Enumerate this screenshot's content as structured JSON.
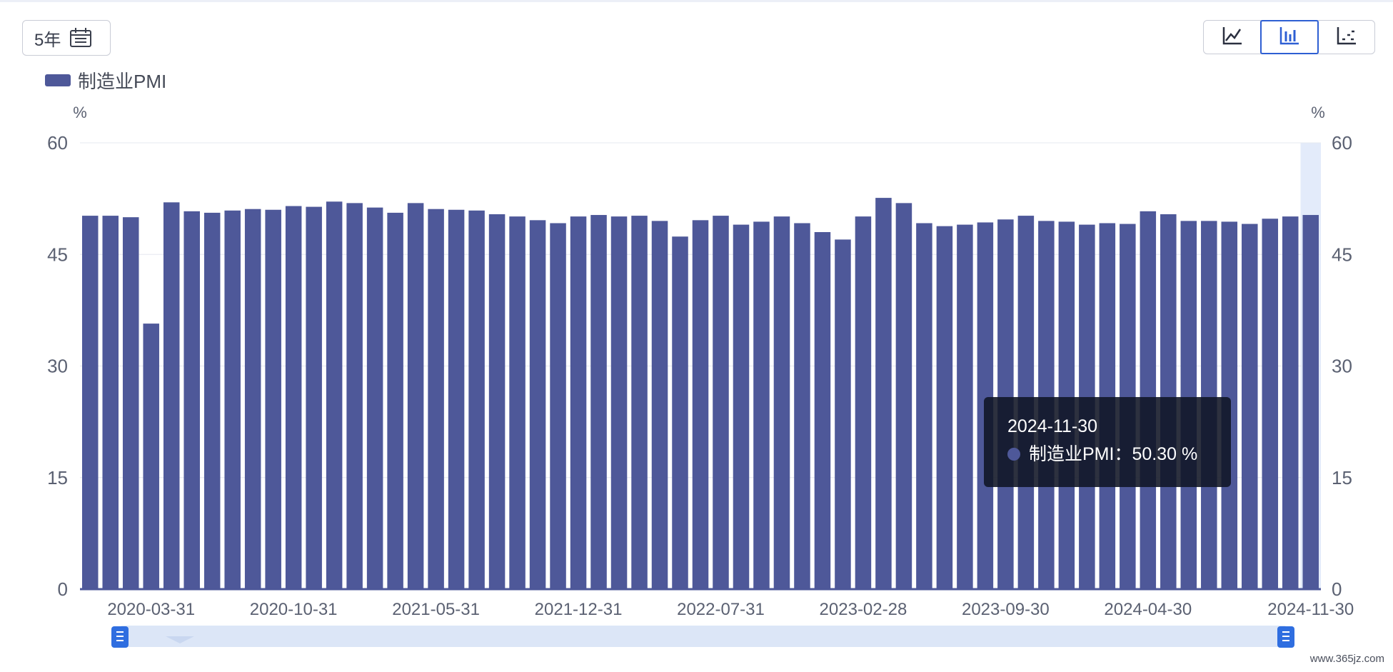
{
  "toolbar": {
    "period_label": "5年",
    "calendar_icon": "calendar-icon",
    "chart_type_buttons": [
      {
        "icon": "line-chart-icon",
        "active": false
      },
      {
        "icon": "bar-chart-icon",
        "active": true
      },
      {
        "icon": "scatter-chart-icon",
        "active": false
      }
    ]
  },
  "tooltip": {
    "date": "2024-11-30",
    "series_name": "制造业PMI",
    "separator": "：",
    "value": "50.30 %"
  },
  "watermark": "www.365jz.com",
  "colors": {
    "bar": "#4e5899",
    "highlight_band": "#e3ebfa",
    "slider_handle": "#2f6ee0",
    "slider_track": "#dce6f7"
  },
  "chart_data": {
    "type": "bar",
    "legend": [
      "制造业PMI"
    ],
    "series": [
      {
        "name": "制造业PMI",
        "values": [
          50.2,
          50.2,
          50.0,
          35.7,
          52.0,
          50.8,
          50.6,
          50.9,
          51.1,
          51.0,
          51.5,
          51.4,
          52.1,
          51.9,
          51.3,
          50.6,
          51.9,
          51.1,
          51.0,
          50.9,
          50.4,
          50.1,
          49.6,
          49.2,
          50.1,
          50.3,
          50.1,
          50.2,
          49.5,
          47.4,
          49.6,
          50.2,
          49.0,
          49.4,
          50.1,
          49.2,
          48.0,
          47.0,
          50.1,
          52.6,
          51.9,
          49.2,
          48.8,
          49.0,
          49.3,
          49.7,
          50.2,
          49.5,
          49.4,
          49.0,
          49.2,
          49.1,
          50.8,
          50.4,
          49.5,
          49.5,
          49.4,
          49.1,
          49.8,
          50.1,
          50.3
        ]
      }
    ],
    "x_tick_labels": [
      "2020-03-31",
      "2020-10-31",
      "2021-05-31",
      "2021-12-31",
      "2022-07-31",
      "2023-02-28",
      "2023-09-30",
      "2024-04-30",
      "2024-11-30"
    ],
    "x_tick_indices": [
      3,
      10,
      17,
      24,
      31,
      38,
      45,
      52,
      60
    ],
    "y_left": {
      "unit": "%",
      "min": 0,
      "max": 60,
      "ticks": [
        0,
        15,
        30,
        45,
        60
      ]
    },
    "y_right": {
      "unit": "%",
      "min": 0,
      "max": 60,
      "ticks": [
        0,
        15,
        30,
        45,
        60
      ]
    },
    "highlighted_index": 60,
    "grid": true
  }
}
